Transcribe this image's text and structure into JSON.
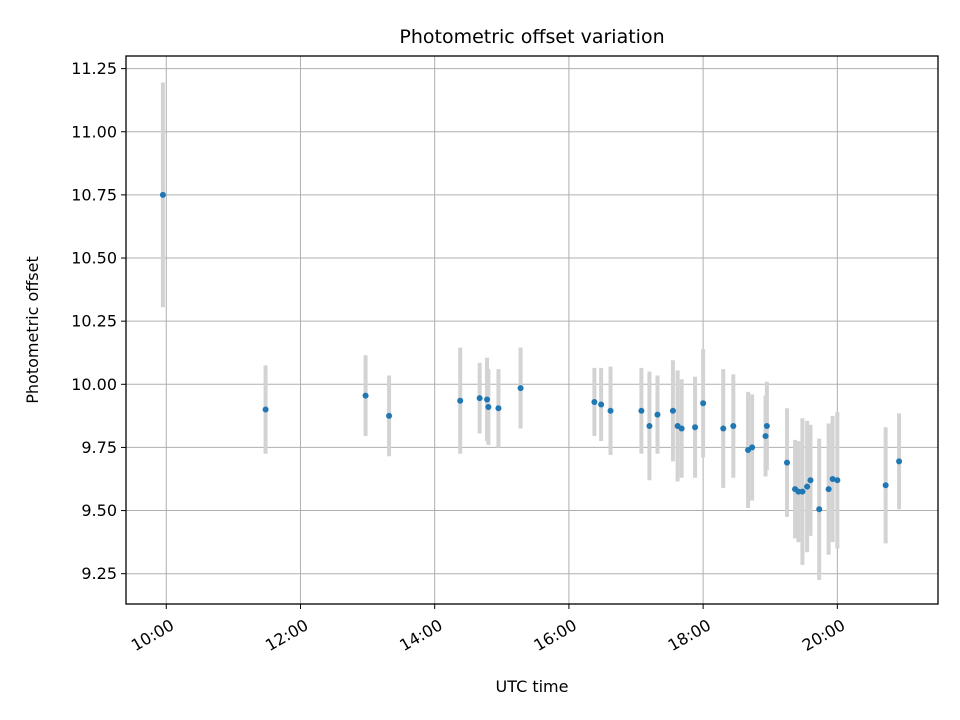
{
  "chart_data": {
    "type": "scatter",
    "title": "Photometric offset variation",
    "xlabel": "UTC time",
    "ylabel": "Photometric offset",
    "x_unit": "hours UTC",
    "xlim": [
      9.4,
      21.5
    ],
    "ylim": [
      9.13,
      11.3
    ],
    "grid": true,
    "x_ticks": [
      10,
      12,
      14,
      16,
      18,
      20
    ],
    "x_tick_labels": [
      "10:00",
      "12:00",
      "14:00",
      "16:00",
      "18:00",
      "20:00"
    ],
    "y_ticks": [
      9.25,
      9.5,
      9.75,
      10.0,
      10.25,
      10.5,
      10.75,
      11.0,
      11.25
    ],
    "y_tick_labels": [
      "9.25",
      "9.50",
      "9.75",
      "10.00",
      "10.25",
      "10.50",
      "10.75",
      "11.00",
      "11.25"
    ],
    "point_color": "#1f77b4",
    "errorbar_color": "#d3d3d3",
    "points": [
      {
        "x": 9.95,
        "y": 10.75,
        "err": 0.445
      },
      {
        "x": 11.48,
        "y": 9.9,
        "err": 0.175
      },
      {
        "x": 12.97,
        "y": 9.955,
        "err": 0.16
      },
      {
        "x": 13.32,
        "y": 9.875,
        "err": 0.16
      },
      {
        "x": 14.38,
        "y": 9.935,
        "err": 0.21
      },
      {
        "x": 14.67,
        "y": 9.945,
        "err": 0.14
      },
      {
        "x": 14.78,
        "y": 9.94,
        "err": 0.165
      },
      {
        "x": 14.8,
        "y": 9.91,
        "err": 0.15
      },
      {
        "x": 14.95,
        "y": 9.905,
        "err": 0.155
      },
      {
        "x": 15.28,
        "y": 9.985,
        "err": 0.16
      },
      {
        "x": 16.38,
        "y": 9.93,
        "err": 0.135
      },
      {
        "x": 16.48,
        "y": 9.92,
        "err": 0.145
      },
      {
        "x": 16.62,
        "y": 9.895,
        "err": 0.175
      },
      {
        "x": 17.08,
        "y": 9.895,
        "err": 0.17
      },
      {
        "x": 17.2,
        "y": 9.835,
        "err": 0.215
      },
      {
        "x": 17.32,
        "y": 9.88,
        "err": 0.155
      },
      {
        "x": 17.55,
        "y": 9.895,
        "err": 0.2
      },
      {
        "x": 17.62,
        "y": 9.835,
        "err": 0.22
      },
      {
        "x": 17.68,
        "y": 9.825,
        "err": 0.195
      },
      {
        "x": 17.88,
        "y": 9.83,
        "err": 0.2
      },
      {
        "x": 18.0,
        "y": 9.925,
        "err": 0.215
      },
      {
        "x": 18.3,
        "y": 9.825,
        "err": 0.235
      },
      {
        "x": 18.45,
        "y": 9.835,
        "err": 0.205
      },
      {
        "x": 18.67,
        "y": 9.74,
        "err": 0.23
      },
      {
        "x": 18.73,
        "y": 9.75,
        "err": 0.21
      },
      {
        "x": 18.95,
        "y": 9.835,
        "err": 0.175
      },
      {
        "x": 18.93,
        "y": 9.795,
        "err": 0.16
      },
      {
        "x": 19.25,
        "y": 9.69,
        "err": 0.215
      },
      {
        "x": 19.37,
        "y": 9.585,
        "err": 0.195
      },
      {
        "x": 19.42,
        "y": 9.575,
        "err": 0.2
      },
      {
        "x": 19.48,
        "y": 9.575,
        "err": 0.29
      },
      {
        "x": 19.55,
        "y": 9.595,
        "err": 0.26
      },
      {
        "x": 19.6,
        "y": 9.62,
        "err": 0.22
      },
      {
        "x": 19.73,
        "y": 9.505,
        "err": 0.28
      },
      {
        "x": 19.87,
        "y": 9.585,
        "err": 0.26
      },
      {
        "x": 19.93,
        "y": 9.625,
        "err": 0.25
      },
      {
        "x": 20.0,
        "y": 9.62,
        "err": 0.27
      },
      {
        "x": 20.72,
        "y": 9.6,
        "err": 0.23
      },
      {
        "x": 20.92,
        "y": 9.695,
        "err": 0.19
      }
    ]
  }
}
